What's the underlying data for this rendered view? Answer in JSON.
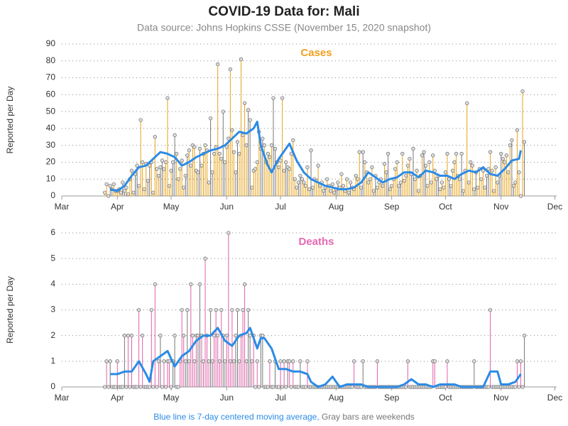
{
  "title": "COVID-19 Data for: Mali",
  "subtitle": "Data source: Johns Hopkins CSSE (November 15, 2020 snapshot)",
  "footnote": [
    "Blue line is 7-day centered moving average,",
    "Gray bars are weekends"
  ],
  "weekend_color": "#777777",
  "line_color": "#2b8be6",
  "xlim": [
    61,
    337
  ],
  "xticks": [
    {
      "value": 61,
      "label": "Mar"
    },
    {
      "value": 92,
      "label": "Apr"
    },
    {
      "value": 122,
      "label": "May"
    },
    {
      "value": 153,
      "label": "Jun"
    },
    {
      "value": 183,
      "label": "Jul"
    },
    {
      "value": 214,
      "label": "Aug"
    },
    {
      "value": 245,
      "label": "Sep"
    },
    {
      "value": 275,
      "label": "Oct"
    },
    {
      "value": 306,
      "label": "Nov"
    },
    {
      "value": 336,
      "label": "Dec"
    }
  ],
  "x": [
    85,
    86,
    87,
    88,
    89,
    90,
    91,
    92,
    93,
    94,
    95,
    96,
    97,
    98,
    99,
    100,
    101,
    102,
    103,
    104,
    105,
    106,
    107,
    108,
    109,
    110,
    111,
    112,
    113,
    114,
    115,
    116,
    117,
    118,
    119,
    120,
    121,
    122,
    123,
    124,
    125,
    126,
    127,
    128,
    129,
    130,
    131,
    132,
    133,
    134,
    135,
    136,
    137,
    138,
    139,
    140,
    141,
    142,
    143,
    144,
    145,
    146,
    147,
    148,
    149,
    150,
    151,
    152,
    153,
    154,
    155,
    156,
    157,
    158,
    159,
    160,
    161,
    162,
    163,
    164,
    165,
    166,
    167,
    168,
    169,
    170,
    171,
    172,
    173,
    174,
    175,
    176,
    177,
    178,
    179,
    180,
    181,
    182,
    183,
    184,
    185,
    186,
    187,
    188,
    189,
    190,
    191,
    192,
    193,
    194,
    195,
    196,
    197,
    198,
    199,
    200,
    201,
    202,
    203,
    204,
    205,
    206,
    207,
    208,
    209,
    210,
    211,
    212,
    213,
    214,
    215,
    216,
    217,
    218,
    219,
    220,
    221,
    222,
    223,
    224,
    225,
    226,
    227,
    228,
    229,
    230,
    231,
    232,
    233,
    234,
    235,
    236,
    237,
    238,
    239,
    240,
    241,
    242,
    243,
    244,
    245,
    246,
    247,
    248,
    249,
    250,
    251,
    252,
    253,
    254,
    255,
    256,
    257,
    258,
    259,
    260,
    261,
    262,
    263,
    264,
    265,
    266,
    267,
    268,
    269,
    270,
    271,
    272,
    273,
    274,
    275,
    276,
    277,
    278,
    279,
    280,
    281,
    282,
    283,
    284,
    285,
    286,
    287,
    288,
    289,
    290,
    291,
    292,
    293,
    294,
    295,
    296,
    297,
    298,
    299,
    300,
    301,
    302,
    303,
    304,
    305,
    306,
    307,
    308,
    309,
    310,
    311,
    312,
    313,
    314,
    315,
    316,
    317,
    318,
    319
  ],
  "chart_data": [
    {
      "type": "needle",
      "title": "Cases",
      "ylabel": "Reported per Day",
      "color": "#e8a317",
      "title_color": "#f0a020",
      "ylim": [
        0,
        90
      ],
      "yticks": [
        0,
        10,
        20,
        30,
        40,
        50,
        60,
        70,
        80,
        90
      ],
      "grid": true,
      "values": [
        2,
        7,
        0,
        6,
        4,
        7,
        3,
        3,
        4,
        2,
        8,
        3,
        5,
        1,
        10,
        15,
        2,
        13,
        18,
        6,
        45,
        20,
        4,
        19,
        9,
        18,
        20,
        2,
        35,
        16,
        12,
        17,
        21,
        16,
        20,
        58,
        6,
        15,
        20,
        36,
        25,
        10,
        16,
        21,
        5,
        12,
        24,
        27,
        18,
        30,
        29,
        15,
        14,
        28,
        18,
        25,
        30,
        27,
        8,
        46,
        14,
        25,
        29,
        78,
        25,
        22,
        50,
        20,
        29,
        34,
        75,
        39,
        26,
        14,
        32,
        25,
        81,
        36,
        55,
        30,
        51,
        45,
        5,
        15,
        16,
        20,
        38,
        28,
        34,
        30,
        20,
        25,
        23,
        30,
        58,
        28,
        20,
        17,
        21,
        58,
        15,
        20,
        17,
        16,
        25,
        33,
        10,
        5,
        8,
        12,
        10,
        8,
        6,
        17,
        4,
        27,
        5,
        10,
        9,
        18,
        6,
        8,
        3,
        5,
        10,
        6,
        3,
        7,
        2,
        4,
        8,
        5,
        13,
        6,
        3,
        10,
        2,
        8,
        5,
        4,
        12,
        10,
        26,
        5,
        26,
        20,
        14,
        8,
        10,
        17,
        3,
        12,
        5,
        8,
        10,
        6,
        19,
        14,
        25,
        4,
        6,
        10,
        16,
        20,
        6,
        8,
        25,
        9,
        12,
        18,
        22,
        13,
        28,
        10,
        15,
        3,
        12,
        24,
        26,
        18,
        6,
        20,
        8,
        24,
        15,
        10,
        12,
        4,
        8,
        5,
        14,
        25,
        10,
        6,
        15,
        20,
        25,
        12,
        10,
        25,
        3,
        15,
        55,
        8,
        20,
        18,
        4,
        14,
        5,
        16,
        10,
        15,
        5,
        12,
        16,
        26,
        15,
        3,
        17,
        8,
        12,
        25,
        22,
        20,
        24,
        14,
        30,
        33,
        6,
        8,
        39,
        14,
        0,
        62,
        32
      ],
      "average": {
        "x": [
          88,
          92,
          96,
          100,
          104,
          108,
          112,
          116,
          120,
          124,
          128,
          132,
          136,
          140,
          144,
          148,
          152,
          156,
          160,
          164,
          168,
          170,
          172,
          176,
          178,
          182,
          186,
          188,
          192,
          196,
          200,
          204,
          208,
          212,
          216,
          220,
          224,
          228,
          232,
          236,
          240,
          244,
          248,
          252,
          256,
          260,
          264,
          268,
          272,
          276,
          280,
          284,
          288,
          292,
          296,
          300,
          304,
          308,
          312,
          316,
          317
        ],
        "values": [
          4,
          3,
          6,
          12,
          17,
          18,
          22,
          26,
          25,
          23,
          18,
          20,
          23,
          25,
          27,
          28,
          30,
          34,
          38,
          37,
          40,
          44,
          30,
          18,
          14,
          22,
          28,
          31,
          21,
          14,
          10,
          8,
          6,
          5,
          4,
          4,
          5,
          8,
          14,
          11,
          8,
          10,
          11,
          14,
          14,
          11,
          15,
          14,
          12,
          12,
          10,
          13,
          15,
          14,
          17,
          13,
          12,
          16,
          21,
          22,
          27
        ]
      }
    },
    {
      "type": "needle",
      "title": "Deaths",
      "ylabel": "Reported per Day",
      "color": "#e060a8",
      "title_color": "#e868b0",
      "ylim": [
        0,
        6
      ],
      "yticks": [
        0,
        1,
        2,
        3,
        4,
        5,
        6
      ],
      "grid": true,
      "values": [
        0,
        1,
        0,
        1,
        0,
        0,
        0,
        1,
        0,
        0,
        0,
        2,
        0,
        2,
        0,
        2,
        0,
        0,
        0,
        3,
        0,
        2,
        0,
        0,
        0,
        0,
        3,
        0,
        4,
        0,
        1,
        2,
        0,
        1,
        0,
        1,
        1,
        0,
        1,
        2,
        0,
        0,
        1,
        3,
        2,
        1,
        3,
        1,
        4,
        2,
        1,
        2,
        2,
        4,
        2,
        1,
        5,
        2,
        1,
        3,
        1,
        2,
        3,
        2,
        1,
        3,
        2,
        1,
        2,
        6,
        1,
        3,
        1,
        2,
        3,
        1,
        2,
        3,
        4,
        1,
        3,
        2,
        1,
        2,
        0,
        1,
        0,
        2,
        2,
        0,
        0,
        0,
        1,
        0,
        0,
        1,
        0,
        0,
        1,
        0,
        1,
        0,
        1,
        1,
        0,
        1,
        0,
        0,
        0,
        1,
        0,
        0,
        0,
        1,
        0,
        0,
        0,
        0,
        0,
        0,
        0,
        0,
        0,
        0,
        0,
        0,
        0,
        0,
        0,
        0,
        0,
        0,
        0,
        0,
        0,
        0,
        0,
        0,
        0,
        1,
        0,
        0,
        0,
        0,
        1,
        0,
        0,
        0,
        0,
        0,
        0,
        0,
        1,
        0,
        0,
        0,
        0,
        0,
        0,
        0,
        0,
        0,
        0,
        0,
        0,
        0,
        0,
        0,
        0,
        1,
        0,
        0,
        0,
        0,
        0,
        0,
        0,
        0,
        0,
        0,
        0,
        0,
        0,
        1,
        1,
        0,
        0,
        0,
        0,
        0,
        0,
        1,
        0,
        0,
        0,
        0,
        0,
        0,
        0,
        0,
        0,
        0,
        0,
        0,
        0,
        0,
        1,
        0,
        0,
        0,
        0,
        0,
        0,
        0,
        0,
        3,
        0,
        0,
        0,
        0,
        0,
        0,
        0,
        0,
        0,
        0,
        0,
        0,
        0,
        0,
        1,
        0,
        1,
        0,
        2
      ],
      "average": {
        "x": [
          88,
          92,
          96,
          100,
          104,
          108,
          110,
          112,
          116,
          120,
          124,
          128,
          132,
          136,
          140,
          144,
          148,
          152,
          156,
          160,
          164,
          166,
          170,
          172,
          174,
          178,
          182,
          186,
          190,
          194,
          198,
          200,
          204,
          208,
          212,
          216,
          220,
          224,
          228,
          232,
          236,
          240,
          244,
          248,
          252,
          256,
          260,
          264,
          268,
          272,
          276,
          280,
          284,
          288,
          292,
          296,
          300,
          304,
          306,
          310,
          314,
          317
        ],
        "values": [
          0.5,
          0.5,
          0.6,
          0.6,
          1.0,
          0.5,
          0.2,
          1.0,
          1.2,
          1.4,
          0.8,
          1.2,
          1.4,
          1.8,
          2.0,
          2.0,
          2.3,
          1.8,
          1.6,
          2.0,
          2.1,
          2.3,
          1.5,
          1.9,
          1.9,
          1.5,
          0.7,
          0.7,
          0.6,
          0.6,
          0.5,
          0.2,
          0,
          0.1,
          0.4,
          0,
          0.1,
          0.1,
          0.1,
          0,
          0,
          0,
          0,
          0,
          0.1,
          0.3,
          0.1,
          0.1,
          0,
          0.1,
          0.1,
          0.1,
          0,
          0,
          0,
          0,
          0.6,
          0.6,
          0.1,
          0.1,
          0.2,
          0.5
        ]
      }
    }
  ]
}
